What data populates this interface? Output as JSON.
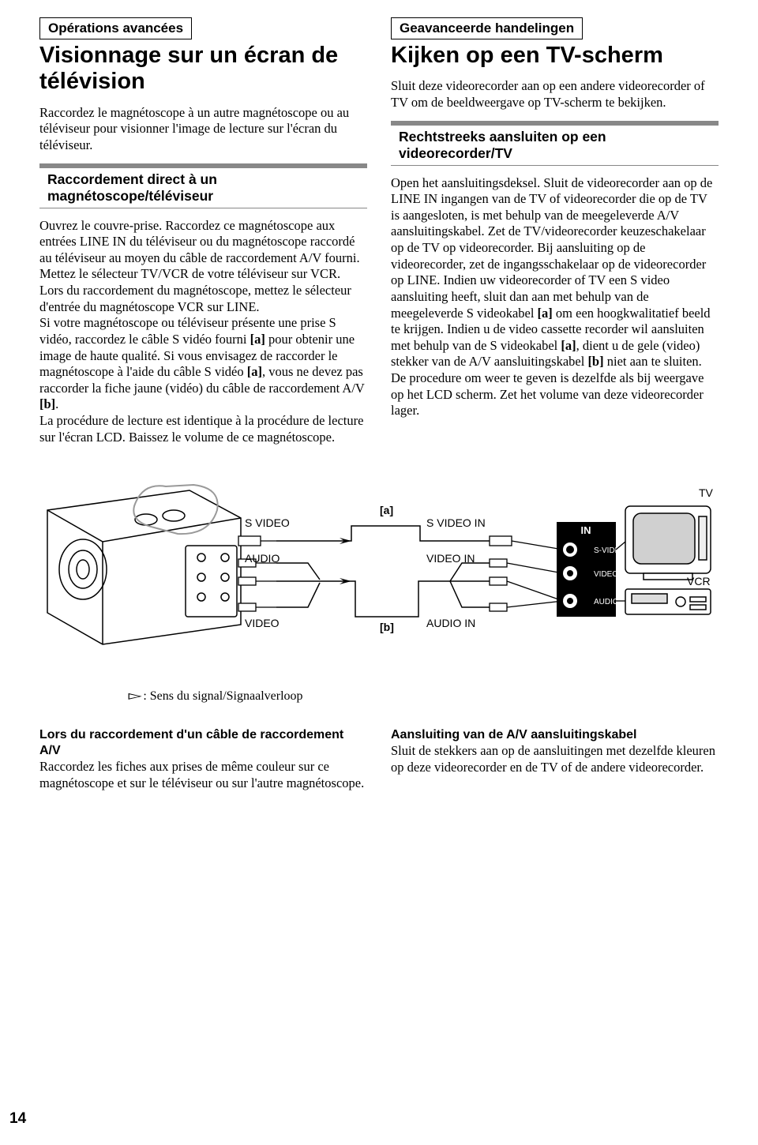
{
  "left": {
    "box": "Opérations avancées",
    "title": "Visionnage sur un écran de télévision",
    "intro": "Raccordez le magnétoscope à un autre magnétoscope ou au téléviseur pour visionner l'image de lecture sur l'écran du téléviseur.",
    "subhead": "Raccordement direct à un magnétoscope/téléviseur",
    "body": "Ouvrez le couvre-prise. Raccordez ce magnétoscope aux entrées LINE IN du téléviseur ou du magnétoscope raccordé au téléviseur au moyen du câble de raccordement A/V fourni. Mettez le sélecteur TV/VCR de votre téléviseur sur VCR. Lors du raccordement du magnétoscope, mettez le sélecteur d'entrée du magnétoscope VCR sur LINE.\nSi votre magnétoscope ou téléviseur présente une prise S vidéo, raccordez le câble S vidéo fourni [a] pour obtenir une image de haute qualité. Si vous envisagez de raccorder le magnétoscope à l'aide du câble S vidéo [a], vous ne devez pas raccorder la fiche jaune (vidéo) du câble de raccordement A/V [b].\nLa procédure de lecture est identique à la procédure de lecture sur l'écran LCD. Baissez le volume de ce magnétoscope."
  },
  "right": {
    "box": "Geavanceerde handelingen",
    "title": "Kijken op een TV-scherm",
    "intro": "Sluit deze videorecorder aan op een andere videorecorder of TV om de beeldweergave op TV-scherm te bekijken.",
    "subhead": "Rechtstreeks aansluiten op een videorecorder/TV",
    "body": "Open het aansluitingsdeksel. Sluit de videorecorder aan op de LINE IN ingangen van de TV of videorecorder die op de TV is aangesloten, is met behulp van de meegeleverde A/V aansluitingskabel. Zet de TV/videorecorder keuzeschakelaar op de TV op videorecorder. Bij aansluiting op de videorecorder, zet de ingangsschakelaar op de videorecorder op LINE. Indien uw videorecorder of TV een S video aansluiting heeft, sluit dan aan met behulp van de meegeleverde S videokabel [a] om een hoogkwalitatief beeld te krijgen. Indien u de video cassette recorder wil aansluiten met behulp van de S videokabel [a], dient u de gele (video) stekker van de A/V aansluitingskabel [b] niet aan te sluiten.\nDe procedure om weer te geven is dezelfde als bij weergave op het LCD scherm. Zet het volume van deze videorecorder lager."
  },
  "diagram": {
    "svideo_out": "S VIDEO",
    "audio_out": "AUDIO",
    "video_out": "VIDEO",
    "a": "[a]",
    "b": "[b]",
    "svideo_in": "S VIDEO IN",
    "video_in": "VIDEO IN",
    "audio_in": "AUDIO IN",
    "in": "IN",
    "svideo_panel": "S-VIDEO",
    "video_panel": "VIDEO",
    "audio_panel": "AUDIO",
    "tv": "TV",
    "vcr": "VCR",
    "caption_prefix": ": Sens du signal/Signaalverloop"
  },
  "bottom_left": {
    "head": "Lors du raccordement d'un câble de raccordement A/V",
    "body": "Raccordez les fiches aux prises de même couleur sur ce magnétoscope et sur le téléviseur ou sur l'autre magnétoscope."
  },
  "bottom_right": {
    "head": "Aansluiting van de A/V aansluitingskabel",
    "body": "Sluit de stekkers aan op de aansluitingen met dezelfde kleuren op deze videorecorder en de TV of de andere videorecorder."
  },
  "page_number": "14"
}
